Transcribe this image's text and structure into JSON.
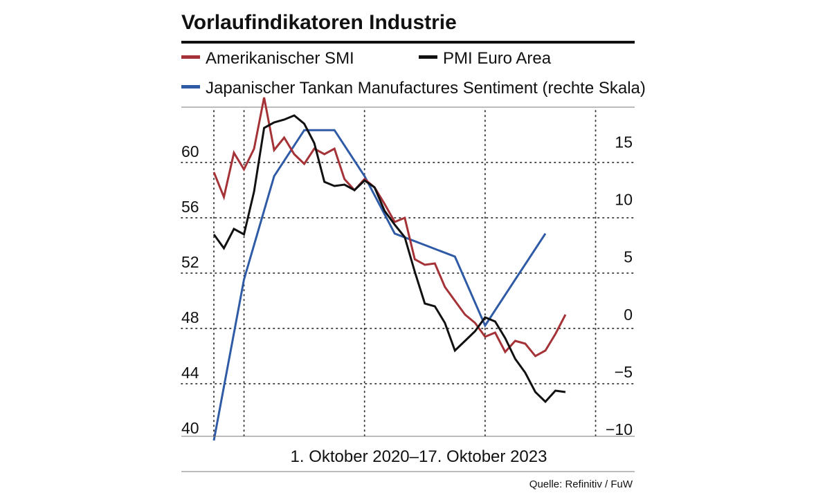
{
  "chart_data": {
    "type": "line",
    "title": "Vorlaufindikatoren Industrie",
    "date_range": "1. Oktober 2020–17. Oktober 2023",
    "source": "Quelle: Refinitiv / FuW",
    "ylim_left": [
      40,
      64
    ],
    "ylim_right": [
      -10,
      19
    ],
    "y_ticks_left": [
      "60",
      "56",
      "52",
      "48",
      "44",
      "40"
    ],
    "y_ticks_right": [
      "15",
      "10",
      "5",
      "0",
      "−5",
      "−10"
    ],
    "grid": "dotted",
    "legend_position": "top",
    "x": [
      "2020-10",
      "2020-11",
      "2020-12",
      "2021-01",
      "2021-02",
      "2021-03",
      "2021-04",
      "2021-05",
      "2021-06",
      "2021-07",
      "2021-08",
      "2021-09",
      "2021-10",
      "2021-11",
      "2021-12",
      "2022-01",
      "2022-02",
      "2022-03",
      "2022-04",
      "2022-05",
      "2022-06",
      "2022-07",
      "2022-08",
      "2022-09",
      "2022-10",
      "2022-11",
      "2022-12",
      "2023-01",
      "2023-02",
      "2023-03",
      "2023-04",
      "2023-05",
      "2023-06",
      "2023-07",
      "2023-08",
      "2023-09"
    ],
    "series": [
      {
        "name": "Amerikanischer SMI",
        "color": "#a43237",
        "axis": "left",
        "values": [
          59.3,
          57.5,
          60.7,
          59.5,
          61.0,
          64.7,
          60.9,
          61.8,
          60.6,
          59.9,
          61.0,
          60.6,
          61.0,
          58.8,
          58.0,
          58.8,
          58.2,
          57.0,
          55.7,
          56.0,
          53.0,
          52.6,
          52.7,
          51.0,
          50.0,
          49.0,
          48.4,
          47.4,
          47.7,
          46.3,
          47.1,
          46.9,
          46.0,
          46.4,
          47.6,
          49.0
        ]
      },
      {
        "name": "PMI Euro Area",
        "color": "#111111",
        "axis": "left",
        "values": [
          54.8,
          53.8,
          55.2,
          54.8,
          57.9,
          62.5,
          62.9,
          63.1,
          63.4,
          62.8,
          61.4,
          58.6,
          58.3,
          58.4,
          58.0,
          58.7,
          58.2,
          56.5,
          55.5,
          54.6,
          52.1,
          49.8,
          49.6,
          48.4,
          46.4,
          47.1,
          47.8,
          48.8,
          48.5,
          47.3,
          45.8,
          44.8,
          43.4,
          42.7,
          43.5,
          43.4
        ]
      },
      {
        "name": "Japanischer Tankan Manufactures Sentiment (rechte Skala)",
        "color": "#2e5aa6",
        "axis": "right",
        "x": [
          "2020-10",
          "2021-01",
          "2021-04",
          "2021-07",
          "2021-10",
          "2022-01",
          "2022-04",
          "2022-07",
          "2022-10",
          "2023-01",
          "2023-04",
          "2023-07"
        ],
        "values": [
          -10,
          4,
          13,
          17,
          17,
          13,
          8,
          7,
          6,
          0,
          4,
          8
        ]
      }
    ]
  }
}
